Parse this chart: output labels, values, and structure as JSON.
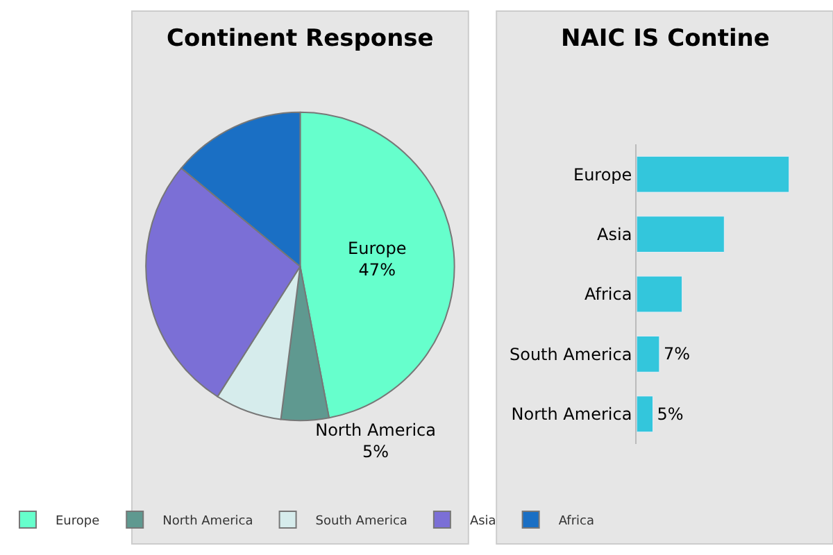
{
  "chart_data": [
    {
      "type": "pie",
      "title": "Continent Response",
      "categories": [
        "Europe",
        "North America",
        "South America",
        "Asia",
        "Africa"
      ],
      "values": [
        47,
        5,
        7,
        27,
        14
      ],
      "colors": [
        "#66ffcc",
        "#5f9990",
        "#d6ecec",
        "#7b6fd6",
        "#1a6fc4"
      ],
      "value_labels": [
        "47%",
        "5%",
        null,
        null,
        null
      ],
      "legend": "bottom"
    },
    {
      "type": "bar",
      "orientation": "horizontal",
      "title": "NAIC IS Contine",
      "categories": [
        "Europe",
        "Asia",
        "Africa",
        "South America",
        "North America"
      ],
      "values": [
        47,
        27,
        14,
        7,
        5
      ],
      "color": "#33c6dc",
      "value_labels": [
        null,
        null,
        null,
        "7%",
        "5%"
      ]
    }
  ]
}
